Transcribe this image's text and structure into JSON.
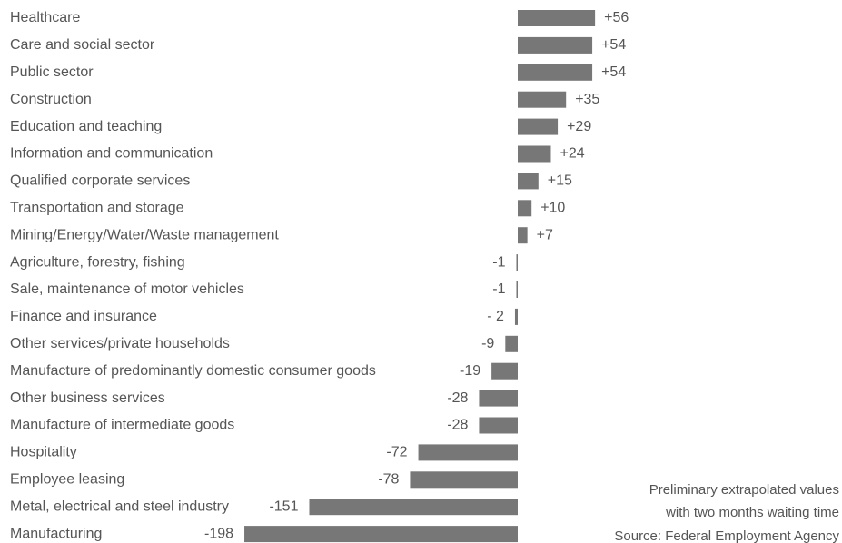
{
  "chart_data": {
    "type": "bar",
    "orientation": "horizontal",
    "categories": [
      "Healthcare",
      "Care and social sector",
      "Public sector",
      "Construction",
      "Education and teaching",
      "Information and communication",
      "Qualified corporate services",
      "Transportation and storage",
      "Mining/Energy/Water/Waste management",
      "Agriculture, forestry, fishing",
      "Sale, maintenance of motor vehicles",
      "Finance and insurance",
      "Other services/private households",
      "Manufacture of predominantly domestic consumer goods",
      "Other business services",
      "Manufacture of intermediate goods",
      "Hospitality",
      "Employee leasing",
      "Metal, electrical and steel industry",
      "Manufacturing"
    ],
    "values": [
      56,
      54,
      54,
      35,
      29,
      24,
      15,
      10,
      7,
      -1,
      -1,
      -2,
      -9,
      -19,
      -28,
      -28,
      -72,
      -78,
      -151,
      -198
    ],
    "value_labels": [
      "+56",
      "+54",
      "+54",
      "+35",
      "+29",
      "+24",
      "+15",
      "+10",
      "+7",
      "-1",
      "-1",
      "-  2",
      "-9",
      "-19",
      "-28",
      "-28",
      "-72",
      "-78",
      "-151",
      "-198"
    ],
    "color": "#777777",
    "xlim": [
      -250,
      100
    ],
    "annotations": [
      "Preliminary extrapolated values",
      "with two months waiting time",
      "Source: Federal Employment Agency"
    ]
  }
}
